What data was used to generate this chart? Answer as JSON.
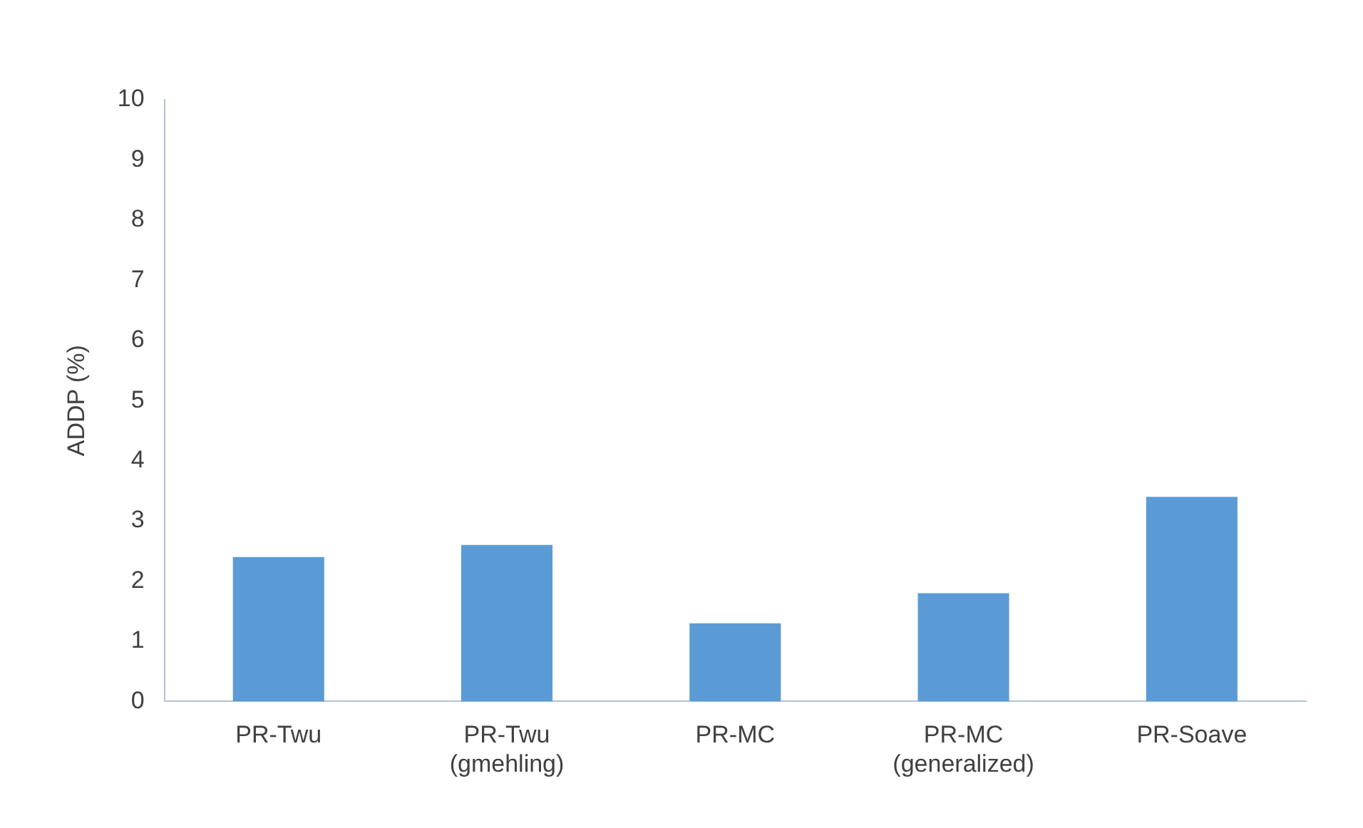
{
  "chart_data": {
    "type": "bar",
    "ylabel": "ADDP (%)",
    "categories": [
      "PR-Twu",
      "PR-Twu (gmehling)",
      "PR-MC",
      "PR-MC (generalized)",
      "PR-Soave"
    ],
    "values": [
      2.4,
      2.6,
      1.3,
      1.8,
      3.4
    ],
    "color": "#5b9bd5",
    "ylim": [
      0,
      10
    ],
    "yticks": [
      0,
      1,
      2,
      3,
      4,
      5,
      6,
      7,
      8,
      9,
      10
    ],
    "grid": false,
    "legend": false
  }
}
